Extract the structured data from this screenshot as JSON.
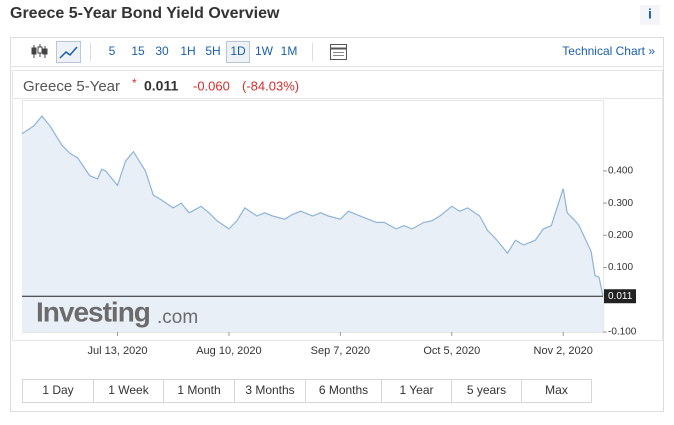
{
  "header": {
    "title": "Greece 5-Year Bond Yield Overview",
    "info_icon": "i"
  },
  "toolbar": {
    "intervals": [
      "5",
      "15",
      "30",
      "1H",
      "5H",
      "1D",
      "1W",
      "1M"
    ],
    "technical_chart": "Technical Chart »"
  },
  "quote": {
    "price": "0.011",
    "change": "-0.060",
    "change_pct": "(-84.03%)"
  },
  "watermark": {
    "brand": "Investing",
    "suffix": ".com"
  },
  "ranges": [
    "1 Day",
    "1 Week",
    "1 Month",
    "3 Months",
    "6 Months",
    "1 Year",
    "5 years",
    "Max"
  ],
  "chart_data": {
    "type": "line",
    "x": [
      "2020-06-19",
      "2020-06-22",
      "2020-06-24",
      "2020-06-26",
      "2020-06-29",
      "2020-07-01",
      "2020-07-03",
      "2020-07-06",
      "2020-07-08",
      "2020-07-09",
      "2020-07-10",
      "2020-07-13",
      "2020-07-15",
      "2020-07-17",
      "2020-07-20",
      "2020-07-22",
      "2020-07-24",
      "2020-07-27",
      "2020-07-29",
      "2020-07-31",
      "2020-08-03",
      "2020-08-05",
      "2020-08-07",
      "2020-08-10",
      "2020-08-12",
      "2020-08-14",
      "2020-08-17",
      "2020-08-19",
      "2020-08-21",
      "2020-08-24",
      "2020-08-26",
      "2020-08-28",
      "2020-08-31",
      "2020-09-02",
      "2020-09-04",
      "2020-09-07",
      "2020-09-09",
      "2020-09-11",
      "2020-09-14",
      "2020-09-16",
      "2020-09-18",
      "2020-09-21",
      "2020-09-23",
      "2020-09-25",
      "2020-09-28",
      "2020-09-30",
      "2020-10-02",
      "2020-10-05",
      "2020-10-07",
      "2020-10-09",
      "2020-10-12",
      "2020-10-14",
      "2020-10-16",
      "2020-10-19",
      "2020-10-21",
      "2020-10-23",
      "2020-10-26",
      "2020-10-28",
      "2020-10-30",
      "2020-11-02",
      "2020-11-03",
      "2020-11-05",
      "2020-11-06",
      "2020-11-09",
      "2020-11-10",
      "2020-11-11",
      "2020-11-12"
    ],
    "series": [
      {
        "name": "Greece 5-Year",
        "color": "#8fb4d8",
        "values": [
          0.515,
          0.54,
          0.57,
          0.54,
          0.48,
          0.455,
          0.44,
          0.385,
          0.375,
          0.405,
          0.4,
          0.355,
          0.43,
          0.46,
          0.4,
          0.325,
          0.31,
          0.285,
          0.3,
          0.27,
          0.29,
          0.27,
          0.245,
          0.22,
          0.245,
          0.285,
          0.26,
          0.27,
          0.26,
          0.25,
          0.265,
          0.275,
          0.26,
          0.27,
          0.26,
          0.25,
          0.275,
          0.265,
          0.25,
          0.24,
          0.24,
          0.22,
          0.23,
          0.22,
          0.24,
          0.245,
          0.26,
          0.29,
          0.275,
          0.285,
          0.26,
          0.215,
          0.19,
          0.145,
          0.185,
          0.17,
          0.185,
          0.22,
          0.23,
          0.345,
          0.27,
          0.245,
          0.23,
          0.15,
          0.075,
          0.07,
          0.011
        ]
      }
    ],
    "xlim": [
      "2020-06-19",
      "2020-11-12"
    ],
    "xticks": [
      {
        "value": "2020-07-13",
        "label": "Jul 13, 2020"
      },
      {
        "value": "2020-08-10",
        "label": "Aug 10, 2020"
      },
      {
        "value": "2020-09-07",
        "label": "Sep 7, 2020"
      },
      {
        "value": "2020-10-05",
        "label": "Oct 5, 2020"
      },
      {
        "value": "2020-11-02",
        "label": "Nov 2, 2020"
      }
    ],
    "ylim": [
      -0.1,
      0.62
    ],
    "yticks": [
      {
        "value": 0.4,
        "label": "0.400"
      },
      {
        "value": 0.3,
        "label": "0.300"
      },
      {
        "value": 0.2,
        "label": "0.200"
      },
      {
        "value": 0.1,
        "label": "0.100"
      },
      {
        "value": -0.1,
        "label": "-0.100"
      }
    ],
    "fill": "#e8eff7"
  }
}
